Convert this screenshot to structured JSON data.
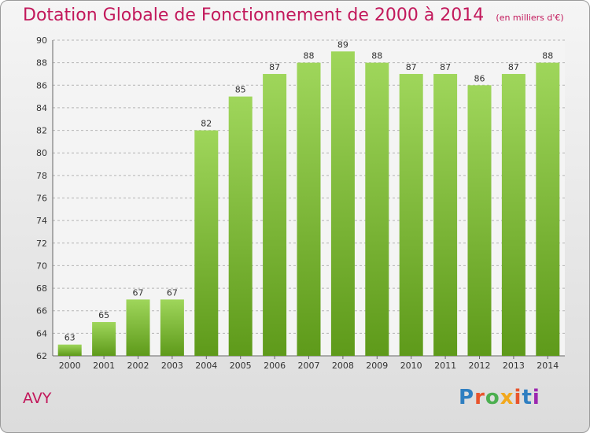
{
  "header": {
    "title": "Dotation Globale de Fonctionnement de 2000 à 2014",
    "subtitle": "(en milliers d'€)"
  },
  "footer": {
    "commune": "AVY",
    "logo": "Proxiti",
    "logo_colors": [
      "#2f7fc1",
      "#e8542c",
      "#4caf50",
      "#f2a81d",
      "#e8542c",
      "#2f7fc1",
      "#9c27b0"
    ]
  },
  "chart_data": {
    "type": "bar",
    "categories": [
      "2000",
      "2001",
      "2002",
      "2003",
      "2004",
      "2005",
      "2006",
      "2007",
      "2008",
      "2009",
      "2010",
      "2011",
      "2012",
      "2013",
      "2014"
    ],
    "values": [
      63,
      65,
      67,
      67,
      82,
      85,
      87,
      88,
      89,
      88,
      87,
      87,
      86,
      87,
      88
    ],
    "title": "Dotation Globale de Fonctionnement de 2000 à 2014",
    "subtitle": "(en milliers d'€)",
    "ylim": [
      62,
      90
    ],
    "yticks": [
      62,
      64,
      66,
      68,
      70,
      72,
      74,
      76,
      78,
      80,
      82,
      84,
      86,
      88,
      90
    ],
    "grid": true,
    "bar_color": "#7cb83b"
  }
}
